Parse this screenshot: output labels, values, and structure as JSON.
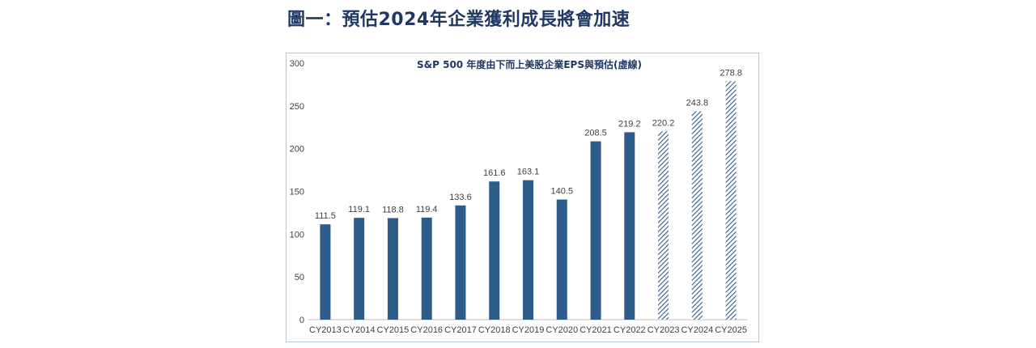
{
  "heading": "圖一：預估2024年企業獲利成長將會加速",
  "chart_data": {
    "type": "bar",
    "title": "S&P 500 年度由下而上美股企業EPS與預估(虛線)",
    "categories": [
      "CY2013",
      "CY2014",
      "CY2015",
      "CY2016",
      "CY2017",
      "CY2018",
      "CY2019",
      "CY2020",
      "CY2021",
      "CY2022",
      "CY2023",
      "CY2024",
      "CY2025"
    ],
    "values": [
      111.5,
      119.1,
      118.8,
      119.4,
      133.6,
      161.6,
      163.1,
      140.5,
      208.5,
      219.2,
      220.2,
      243.8,
      278.8
    ],
    "value_labels": [
      "111.5",
      "119.1",
      "118.8",
      "119.4",
      "133.6",
      "161.6",
      "163.1",
      "140.5",
      "208.5",
      "219.2",
      "220.2",
      "243.8",
      "278.8"
    ],
    "estimated": [
      false,
      false,
      false,
      false,
      false,
      false,
      false,
      false,
      false,
      false,
      true,
      true,
      true
    ],
    "ylim": [
      0,
      300
    ],
    "yticks": [
      0,
      50,
      100,
      150,
      200,
      250,
      300
    ],
    "ytick_labels": [
      "0",
      "50",
      "100",
      "150",
      "200",
      "250",
      "300"
    ],
    "grid": false,
    "colors": {
      "actual": "#2e5c8a",
      "estimate_hatch": "#2e5c8a"
    }
  }
}
